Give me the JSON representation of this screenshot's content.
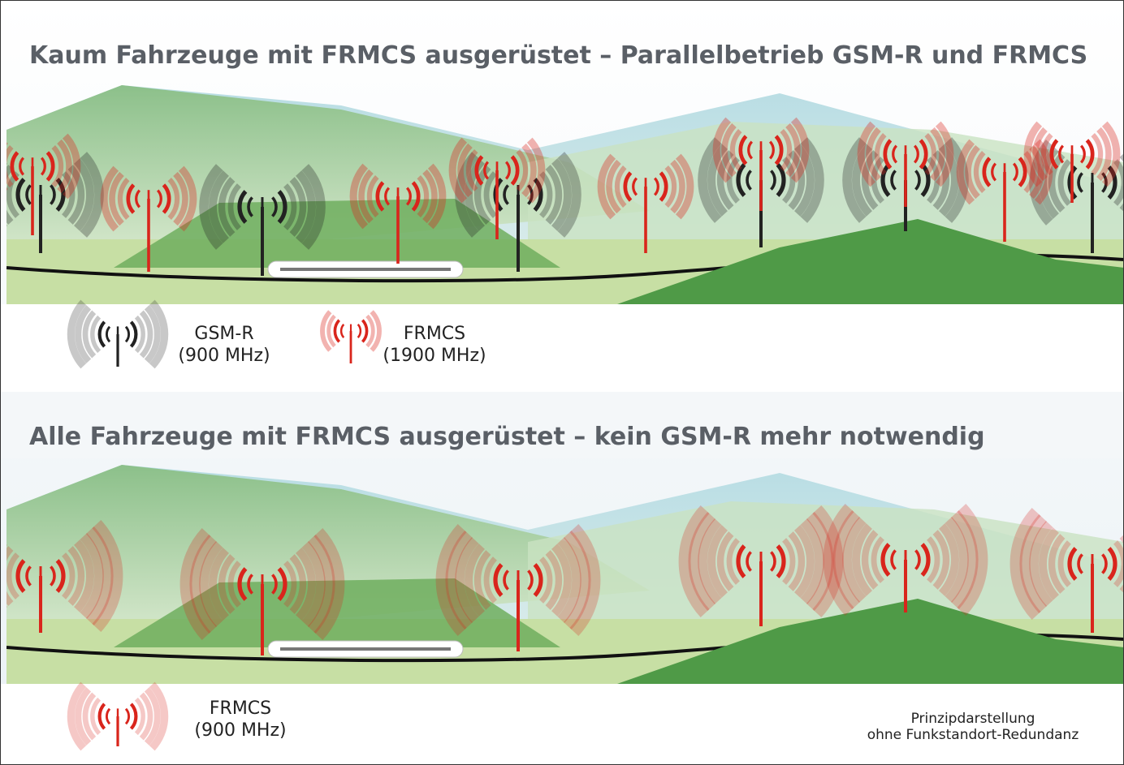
{
  "panels": [
    {
      "title": "Kaum Fahrzeuge mit FRMCS ausgerüstet – Parallelbetrieb GSM-R und FRMCS",
      "legend": [
        {
          "name": "GSM-R",
          "band": "(900 MHz)"
        },
        {
          "name": "FRMCS",
          "band": "(1900 MHz)"
        }
      ]
    },
    {
      "title": "Alle Fahrzeuge mit FRMCS ausgerüstet – kein GSM-R mehr notwendig",
      "legend": [
        {
          "name": "FRMCS",
          "band": "(900 MHz)"
        }
      ]
    }
  ],
  "note": [
    "Prinzipdarstellung",
    "ohne Funkstandort-Redundanz"
  ]
}
